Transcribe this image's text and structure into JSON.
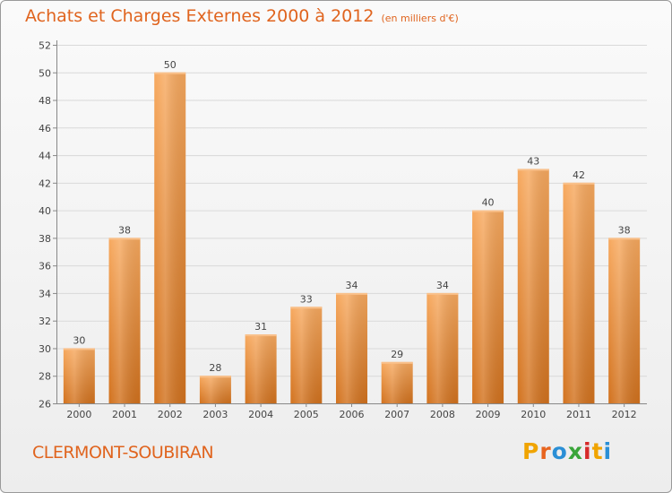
{
  "header": {
    "title": "Achats et Charges Externes 2000 à 2012",
    "subtitle": "(en milliers d'€)"
  },
  "footer": {
    "place": "CLERMONT-SOUBIRAN",
    "logo_text": "Proxiti",
    "logo_colors": [
      "#f0a400",
      "#e8641e",
      "#2a8fd6",
      "#3aa53a",
      "#d62a2a",
      "#f0a400",
      "#2a8fd6"
    ]
  },
  "colors": {
    "title": "#e0641e",
    "bar_light": "#f6a35a",
    "bar_dark": "#d77824"
  },
  "chart_data": {
    "type": "bar",
    "title": "Achats et Charges Externes 2000 à 2012",
    "subtitle": "(en milliers d'€)",
    "categories": [
      "2000",
      "2001",
      "2002",
      "2003",
      "2004",
      "2005",
      "2006",
      "2007",
      "2008",
      "2009",
      "2010",
      "2011",
      "2012"
    ],
    "values": [
      30,
      38,
      50,
      28,
      31,
      33,
      34,
      29,
      34,
      40,
      43,
      42,
      38
    ],
    "ylim": [
      26,
      52
    ],
    "yticks": [
      26,
      28,
      30,
      32,
      34,
      36,
      38,
      40,
      42,
      44,
      46,
      48,
      50,
      52
    ],
    "grid": true,
    "legend": "none"
  }
}
